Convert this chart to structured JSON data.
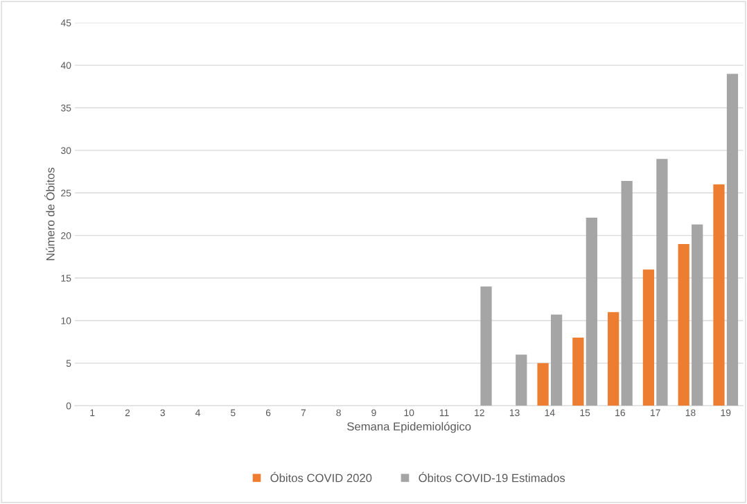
{
  "chart_data": {
    "type": "bar",
    "xlabel": "Semana Epidemiológico",
    "ylabel": "Número de Óbitos",
    "categories": [
      "1",
      "2",
      "3",
      "4",
      "5",
      "6",
      "7",
      "8",
      "9",
      "10",
      "11",
      "12",
      "13",
      "14",
      "15",
      "16",
      "17",
      "18",
      "19"
    ],
    "series": [
      {
        "name": "Óbitos COVID 2020",
        "color": "#ed7d31",
        "values": [
          null,
          null,
          null,
          null,
          null,
          null,
          null,
          null,
          null,
          null,
          null,
          null,
          null,
          5,
          8,
          11,
          16,
          19,
          26
        ]
      },
      {
        "name": "Óbitos COVID-19 Estimados",
        "color": "#a5a5a5",
        "values": [
          null,
          null,
          null,
          null,
          null,
          null,
          null,
          null,
          null,
          null,
          null,
          14,
          6,
          10.7,
          22.1,
          26.4,
          29,
          21.3,
          39
        ]
      }
    ],
    "ylim": [
      0,
      45
    ],
    "yticks": [
      0,
      5,
      10,
      15,
      20,
      25,
      30,
      35,
      40,
      45
    ],
    "grid": "y",
    "legend": "bottom"
  }
}
